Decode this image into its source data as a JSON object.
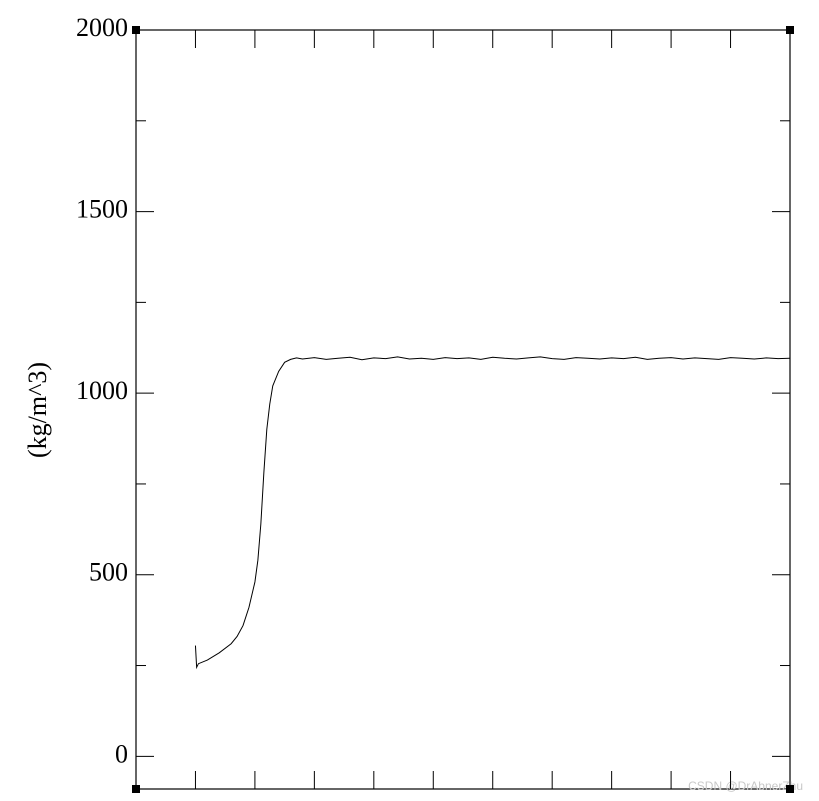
{
  "chart_data": {
    "type": "line",
    "ylabel": "(kg/m^3)",
    "ylim": [
      -90,
      2000
    ],
    "yticks": [
      0,
      500,
      1000,
      1500,
      2000
    ],
    "yminorticks": [
      250,
      750,
      1250,
      1750
    ],
    "xlim": [
      0,
      11
    ],
    "xticks": [
      1,
      2,
      3,
      4,
      5,
      6,
      7,
      8,
      9,
      10
    ],
    "series": [
      {
        "color": "#000000",
        "x": [
          1.0,
          1.02,
          1.05,
          1.2,
          1.4,
          1.6,
          1.7,
          1.8,
          1.9,
          2.0,
          2.05,
          2.1,
          2.15,
          2.2,
          2.25,
          2.3,
          2.4,
          2.5,
          2.6,
          2.7,
          2.8,
          3.0,
          3.2,
          3.4,
          3.6,
          3.8,
          4.0,
          4.2,
          4.4,
          4.6,
          4.8,
          5.0,
          5.2,
          5.4,
          5.6,
          5.8,
          6.0,
          6.2,
          6.4,
          6.6,
          6.8,
          7.0,
          7.2,
          7.4,
          7.6,
          7.8,
          8.0,
          8.2,
          8.4,
          8.6,
          8.8,
          9.0,
          9.2,
          9.4,
          9.6,
          9.8,
          10.0,
          10.2,
          10.4,
          10.6,
          10.8,
          11.0
        ],
        "values": [
          305,
          245,
          255,
          265,
          285,
          310,
          330,
          360,
          410,
          480,
          540,
          640,
          780,
          900,
          970,
          1020,
          1060,
          1085,
          1093,
          1097,
          1094,
          1098,
          1093,
          1096,
          1099,
          1092,
          1097,
          1095,
          1100,
          1094,
          1096,
          1093,
          1098,
          1095,
          1097,
          1093,
          1099,
          1096,
          1094,
          1097,
          1100,
          1095,
          1093,
          1098,
          1096,
          1094,
          1097,
          1095,
          1099,
          1093,
          1096,
          1098,
          1094,
          1097,
          1095,
          1093,
          1098,
          1096,
          1094,
          1097,
          1095,
          1096
        ]
      }
    ]
  },
  "watermark": "CSDN @DrAbnerZhu"
}
